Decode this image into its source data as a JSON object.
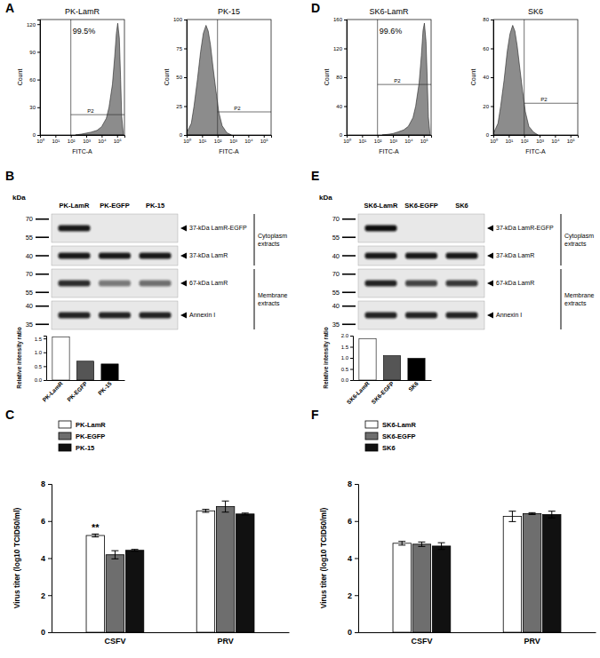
{
  "panel_labels": [
    "A",
    "B",
    "C",
    "D",
    "E",
    "F"
  ],
  "chart_data": [
    {
      "type": "area",
      "title": "PK-LamR",
      "x_label": "FITC-A",
      "y_label": "Count",
      "color": "#8c8c8c",
      "log": "x",
      "x": [
        200,
        500,
        1000,
        2000,
        5000,
        10000,
        20000,
        30000,
        50000,
        70000,
        90000,
        110000,
        140000,
        170000,
        200000,
        250000
      ],
      "values": [
        0,
        1,
        2,
        3,
        5,
        9,
        18,
        30,
        55,
        85,
        110,
        121,
        105,
        60,
        20,
        2
      ],
      "xlim": [
        1,
        300000
      ],
      "xticks": [
        {
          "value": 1,
          "label": "10⁰"
        },
        {
          "value": 10,
          "label": "10¹"
        },
        {
          "value": 100,
          "label": "10²"
        },
        {
          "value": 1000,
          "label": "10³"
        },
        {
          "value": 10000,
          "label": "10⁴"
        },
        {
          "value": 100000,
          "label": "10⁵"
        }
      ],
      "ylim": [
        0,
        125
      ],
      "yticks": [
        0,
        30,
        60,
        90,
        120
      ],
      "gate": {
        "label": "P2",
        "x": [
          100,
          300000
        ],
        "y": 22
      },
      "annotation": "99.5%"
    },
    {
      "type": "area",
      "title": "PK-15",
      "x_label": "FITC-A",
      "y_label": "Count",
      "color": "#8c8c8c",
      "log": "x",
      "x": [
        1,
        2,
        3,
        5,
        8,
        12,
        18,
        25,
        35,
        50,
        80,
        120,
        200,
        400,
        800
      ],
      "values": [
        2,
        10,
        25,
        48,
        72,
        88,
        95,
        90,
        78,
        60,
        38,
        20,
        8,
        2,
        0
      ],
      "xlim": [
        1,
        300000
      ],
      "xticks": [
        {
          "value": 1,
          "label": "10⁰"
        },
        {
          "value": 10,
          "label": "10¹"
        },
        {
          "value": 100,
          "label": "10²"
        },
        {
          "value": 1000,
          "label": "10³"
        },
        {
          "value": 10000,
          "label": "10⁴"
        },
        {
          "value": 100000,
          "label": "10⁵"
        }
      ],
      "ylim": [
        0,
        100
      ],
      "yticks": [
        0,
        25,
        50,
        75,
        100
      ],
      "gate": {
        "label": "P2",
        "x": [
          100,
          300000
        ],
        "y": 20
      }
    },
    {
      "type": "area",
      "title": "SK6-LamR",
      "x_label": "FITC-A",
      "y_label": "Count",
      "color": "#8c8c8c",
      "log": "x",
      "x": [
        200,
        500,
        1000,
        2000,
        5000,
        10000,
        20000,
        30000,
        50000,
        70000,
        90000,
        110000,
        140000,
        170000,
        200000,
        250000
      ],
      "values": [
        0,
        1,
        2,
        4,
        7,
        12,
        24,
        40,
        72,
        110,
        145,
        155,
        130,
        75,
        25,
        2
      ],
      "xlim": [
        1,
        300000
      ],
      "xticks": [
        {
          "value": 1,
          "label": "10⁰"
        },
        {
          "value": 10,
          "label": "10¹"
        },
        {
          "value": 100,
          "label": "10²"
        },
        {
          "value": 1000,
          "label": "10³"
        },
        {
          "value": 10000,
          "label": "10⁴"
        },
        {
          "value": 100000,
          "label": "10⁵"
        }
      ],
      "ylim": [
        0,
        160
      ],
      "yticks": [
        0,
        40,
        80,
        120,
        160
      ],
      "gate": {
        "label": "P2",
        "x": [
          100,
          300000
        ],
        "y": 70
      },
      "annotation": "99.6%"
    },
    {
      "type": "area",
      "title": "SK6",
      "x_label": "FITC-A",
      "y_label": "Count",
      "color": "#8c8c8c",
      "log": "x",
      "x": [
        1,
        2,
        3,
        5,
        8,
        12,
        18,
        25,
        35,
        50,
        80,
        120,
        200,
        400,
        800
      ],
      "values": [
        1,
        8,
        20,
        38,
        58,
        70,
        76,
        72,
        62,
        48,
        30,
        16,
        6,
        2,
        0
      ],
      "xlim": [
        1,
        300000
      ],
      "xticks": [
        {
          "value": 1,
          "label": "10⁰"
        },
        {
          "value": 10,
          "label": "10¹"
        },
        {
          "value": 100,
          "label": "10²"
        },
        {
          "value": 1000,
          "label": "10³"
        },
        {
          "value": 10000,
          "label": "10⁴"
        },
        {
          "value": 100000,
          "label": "10⁵"
        }
      ],
      "ylim": [
        0,
        80
      ],
      "yticks": [
        0,
        20,
        40,
        60,
        80
      ],
      "gate": {
        "label": "P2",
        "x": [
          100,
          300000
        ],
        "y": 22
      }
    },
    {
      "type": "bar",
      "y_label": "Relative intensity ratio",
      "categories": [
        "PK-LamR",
        "PK-EGFP",
        "PK-15"
      ],
      "values": [
        1.56,
        0.68,
        0.58
      ],
      "colors": [
        "#ffffff",
        "#555555",
        "#000000"
      ],
      "ylim": [
        0,
        1.6
      ],
      "yticks": [
        {
          "value": 0,
          "label": "0.0"
        },
        {
          "value": 0.5,
          "label": "0.5"
        },
        {
          "value": 1,
          "label": "1.0"
        },
        {
          "value": 1.5,
          "label": "1.5"
        }
      ]
    },
    {
      "type": "bar",
      "y_label": "Relative intensity ratio",
      "categories": [
        "SK6-LamR",
        "SK6-EGFP",
        "SK6"
      ],
      "values": [
        1.87,
        1.1,
        0.98
      ],
      "colors": [
        "#ffffff",
        "#555555",
        "#000000"
      ],
      "ylim": [
        0,
        2
      ],
      "yticks": [
        {
          "value": 0,
          "label": "0.0"
        },
        {
          "value": 0.5,
          "label": "0.5"
        },
        {
          "value": 1,
          "label": "1.0"
        },
        {
          "value": 1.5,
          "label": "1.5"
        },
        {
          "value": 2,
          "label": "2.0"
        }
      ]
    },
    {
      "type": "bar",
      "y_label": "Virus titer (log10 TCID50/ml)",
      "legend": "top-left",
      "categories": [
        "CSFV",
        "PRV"
      ],
      "series": [
        {
          "name": "PK-LamR",
          "color": "#ffffff",
          "values": [
            5.22,
            6.55
          ],
          "errors": [
            0.08,
            0.08
          ]
        },
        {
          "name": "PK-EGFP",
          "color": "#6e6e6e",
          "values": [
            4.18,
            6.78
          ],
          "errors": [
            0.22,
            0.3
          ]
        },
        {
          "name": "PK-15",
          "color": "#111111",
          "values": [
            4.42,
            6.38
          ],
          "errors": [
            0.05,
            0.05
          ]
        }
      ],
      "annotations": [
        {
          "text": "**",
          "series": "PK-LamR",
          "category": "CSFV"
        }
      ],
      "ylim": [
        0,
        8
      ],
      "yticks": [
        0,
        2,
        4,
        6,
        8
      ]
    },
    {
      "type": "bar",
      "y_label": "Virus titer (log10 TCID50/ml)",
      "legend": "top-left",
      "categories": [
        "CSFV",
        "PRV"
      ],
      "series": [
        {
          "name": "SK6-LamR",
          "color": "#ffffff",
          "values": [
            4.8,
            6.25
          ],
          "errors": [
            0.1,
            0.28
          ]
        },
        {
          "name": "SK6-EGFP",
          "color": "#6e6e6e",
          "values": [
            4.75,
            6.4
          ],
          "errors": [
            0.12,
            0.05
          ]
        },
        {
          "name": "SK6",
          "color": "#111111",
          "values": [
            4.65,
            6.35
          ],
          "errors": [
            0.18,
            0.18
          ]
        }
      ],
      "annotations": [],
      "ylim": [
        0,
        8
      ],
      "yticks": [
        0,
        2,
        4,
        6,
        8
      ]
    }
  ],
  "blots": [
    {
      "kda_label": "kDa",
      "lanes": [
        "PK-LamR",
        "PK-EGFP",
        "PK-15"
      ],
      "groups": [
        {
          "label": "Cytoplasm extracts",
          "strips": [
            {
              "markers": [
                70,
                55
              ],
              "label": "37-kDa LamR-EGFP",
              "bands": [
                0.95,
                0,
                0
              ]
            },
            {
              "markers": [
                40
              ],
              "label": "37-kDa LamR",
              "bands": [
                0.95,
                0.95,
                0.95
              ]
            }
          ]
        },
        {
          "label": "Membrane extracts",
          "strips": [
            {
              "markers": [
                70,
                55
              ],
              "label": "67-kDa LamR",
              "bands": [
                0.85,
                0.5,
                0.55
              ]
            },
            {
              "markers": [
                40,
                35
              ],
              "label": "Annexin I",
              "bands": [
                0.9,
                0.9,
                0.9
              ]
            }
          ]
        }
      ]
    },
    {
      "kda_label": "kDa",
      "lanes": [
        "SK6-LamR",
        "SK6-EGFP",
        "SK6"
      ],
      "groups": [
        {
          "label": "Cytoplasm extracts",
          "strips": [
            {
              "markers": [
                70,
                55
              ],
              "label": "37-kDa LamR-EGFP",
              "bands": [
                1,
                0,
                0
              ]
            },
            {
              "markers": [
                40
              ],
              "label": "37-kDa LamR",
              "bands": [
                0.95,
                0.95,
                0.95
              ]
            }
          ]
        },
        {
          "label": "Membrane extracts",
          "strips": [
            {
              "markers": [
                70,
                55
              ],
              "label": "67-kDa LamR",
              "bands": [
                0.9,
                0.75,
                0.8
              ]
            },
            {
              "markers": [
                40,
                35
              ],
              "label": "Annexin I",
              "bands": [
                0.9,
                0.9,
                0.9
              ]
            }
          ]
        }
      ]
    }
  ]
}
